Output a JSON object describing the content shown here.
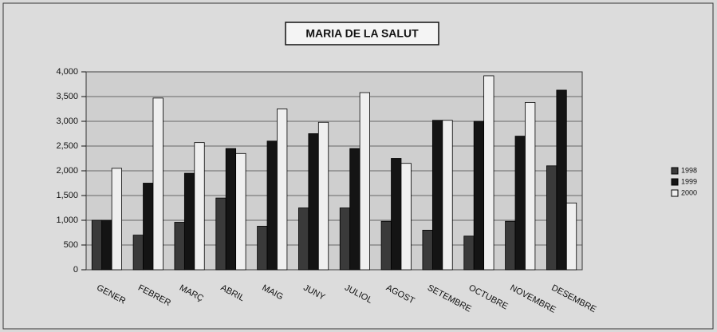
{
  "chart_data": {
    "type": "bar",
    "title": "MARIA DE LA SALUT",
    "categories": [
      "GENER",
      "FEBRER",
      "MARÇ",
      "ABRIL",
      "MAIG",
      "JUNY",
      "JULIOL",
      "AGOST",
      "SETEMBRE",
      "OCTUBRE",
      "NOVEMBRE",
      "DESEMBRE"
    ],
    "series": [
      {
        "name": "1998",
        "color": "#3a3a3a",
        "values": [
          1000,
          700,
          960,
          1450,
          880,
          1250,
          1250,
          980,
          800,
          680,
          980,
          2100
        ]
      },
      {
        "name": "1999",
        "color": "#141414",
        "values": [
          1000,
          1750,
          1950,
          2450,
          2600,
          2750,
          2450,
          2250,
          3020,
          3000,
          2700,
          3630
        ]
      },
      {
        "name": "2000",
        "color": "#efefef",
        "values": [
          2050,
          3470,
          2570,
          2350,
          3250,
          2980,
          3580,
          2150,
          3020,
          3920,
          3380,
          1350
        ]
      }
    ],
    "ylim": [
      0,
      4000
    ],
    "yticks": [
      0,
      500,
      {
        "value": 1000,
        "label": "1,000"
      },
      {
        "value": 1500,
        "label": "1,500"
      },
      {
        "value": 2000,
        "label": "2,000"
      },
      {
        "value": 2500,
        "label": "2,500"
      },
      {
        "value": 3000,
        "label": "3,000"
      },
      {
        "value": 3500,
        "label": "3,500"
      },
      {
        "value": 4000,
        "label": "4,000"
      }
    ],
    "grid": true,
    "legend": "right"
  }
}
